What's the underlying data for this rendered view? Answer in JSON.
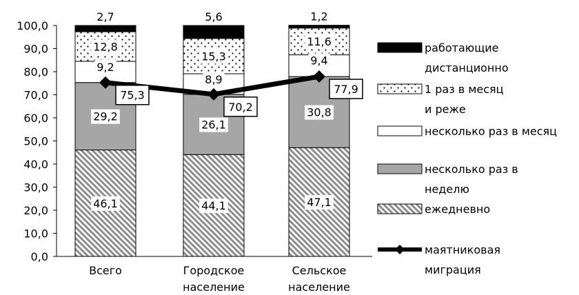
{
  "chart_data": {
    "type": "bar",
    "stacked": true,
    "categories": [
      [
        "Всего"
      ],
      [
        "Городское",
        "население"
      ],
      [
        "Сельское",
        "население"
      ]
    ],
    "ylim": [
      0,
      100
    ],
    "yticks": [
      "0,0",
      "10,0",
      "20,0",
      "30,0",
      "40,0",
      "50,0",
      "60,0",
      "70,0",
      "80,0",
      "90,0",
      "100,0"
    ],
    "grid": false,
    "legend_position": "right",
    "series": [
      {
        "name": [
          "ежедневно"
        ],
        "pattern": "hatch",
        "values": [
          46.1,
          44.1,
          47.1
        ],
        "labels": [
          "46,1",
          "44,1",
          "47,1"
        ]
      },
      {
        "name": [
          "несколько раз в",
          "неделю"
        ],
        "pattern": "gray",
        "color": "#a6a6a6",
        "values": [
          29.2,
          26.1,
          30.8
        ],
        "labels": [
          "29,2",
          "26,1",
          "30,8"
        ]
      },
      {
        "name": [
          "несколько раз в месяц"
        ],
        "pattern": "white",
        "values": [
          9.2,
          8.9,
          9.4
        ],
        "labels": [
          "9,2",
          "8,9",
          "9,4"
        ]
      },
      {
        "name": [
          "1 раз в месяц",
          "и реже"
        ],
        "pattern": "dots",
        "values": [
          12.8,
          15.3,
          11.6
        ],
        "labels": [
          "12,8",
          "15,3",
          "11,6"
        ]
      },
      {
        "name": [
          "работающие",
          "дистанционно"
        ],
        "pattern": "black",
        "color": "#000000",
        "values": [
          2.7,
          5.6,
          1.2
        ],
        "labels": [
          "2,7",
          "5,6",
          "1,2"
        ]
      }
    ],
    "line_series": {
      "name": [
        "маятниковая",
        "миграция"
      ],
      "color": "#000000",
      "values": [
        75.3,
        70.2,
        77.9
      ],
      "labels": [
        "75,3",
        "70,2",
        "77,9"
      ]
    }
  }
}
